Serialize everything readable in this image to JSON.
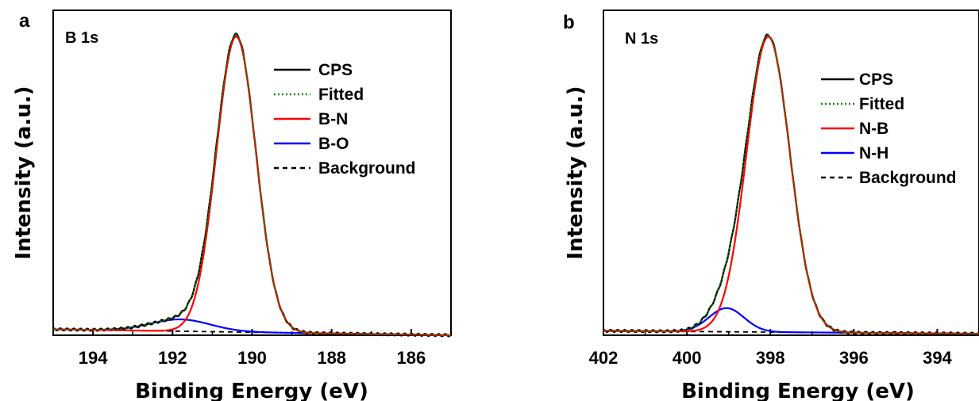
{
  "chart_data": [
    {
      "panel": "a",
      "type": "line",
      "title": "B 1s",
      "xlabel": "Binding Energy (eV)",
      "ylabel": "Intensity (a.u.)",
      "xlim": [
        195,
        185
      ],
      "ylim": [
        0,
        1.1
      ],
      "x_reversed": true,
      "x_ticks": [
        194,
        192,
        190,
        188,
        186
      ],
      "x_tick_labels": [
        "194",
        "192",
        "190",
        "188",
        "186"
      ],
      "y_ticks": [],
      "legend_position": "right",
      "peaks": [
        {
          "name": "B-N",
          "center": 190.4,
          "height": 1.0,
          "sigma": 0.5
        },
        {
          "name": "B-O",
          "center": 191.8,
          "height": 0.04,
          "sigma": 0.75
        }
      ],
      "background": {
        "left": 0.02,
        "right": 0.0
      },
      "series": [
        {
          "name": "CPS",
          "color": "#000000",
          "style": "solid"
        },
        {
          "name": "Fitted",
          "color": "#008000",
          "style": "dotted"
        },
        {
          "name": "B-N",
          "color": "#ff0000",
          "style": "solid"
        },
        {
          "name": "B-O",
          "color": "#0000ff",
          "style": "solid"
        },
        {
          "name": "Background",
          "color": "#000000",
          "style": "dashed"
        }
      ]
    },
    {
      "panel": "b",
      "type": "line",
      "title": "N 1s",
      "xlabel": "Binding Energy (eV)",
      "ylabel": "Intensity (a.u.)",
      "xlim": [
        402,
        393
      ],
      "ylim": [
        0,
        1.1
      ],
      "x_reversed": true,
      "x_ticks": [
        402,
        400,
        398,
        396,
        394
      ],
      "x_tick_labels": [
        "402",
        "400",
        "398",
        "396",
        "394"
      ],
      "y_ticks": [],
      "legend_position": "right",
      "peaks": [
        {
          "name": "N-B",
          "center": 398.05,
          "height": 1.0,
          "sigma": 0.52
        },
        {
          "name": "N-H",
          "center": 399.05,
          "height": 0.08,
          "sigma": 0.42
        }
      ],
      "background": {
        "left": 0.015,
        "right": 0.005
      },
      "series": [
        {
          "name": "CPS",
          "color": "#000000",
          "style": "solid"
        },
        {
          "name": "Fitted",
          "color": "#008000",
          "style": "dotted"
        },
        {
          "name": "N-B",
          "color": "#ff0000",
          "style": "solid"
        },
        {
          "name": "N-H",
          "color": "#0000ff",
          "style": "solid"
        },
        {
          "name": "Background",
          "color": "#000000",
          "style": "dashed"
        }
      ]
    }
  ]
}
